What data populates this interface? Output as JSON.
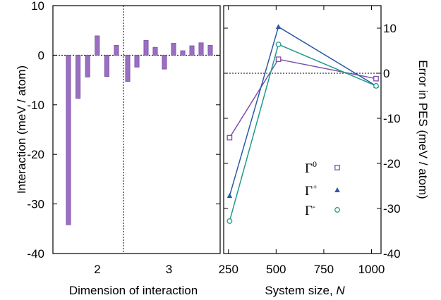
{
  "chart_data": [
    {
      "type": "bar",
      "xlabel": "Dimension of interaction",
      "ylabel": "Interaction (meV / atom)",
      "ylim": [
        -40,
        10
      ],
      "yticks": [
        10,
        0,
        -10,
        -20,
        -30,
        -40
      ],
      "ytick_labels": [
        "10",
        "0",
        "-10",
        "-20",
        "-30",
        "-40"
      ],
      "groups": [
        {
          "label": "2",
          "values": [
            -34.2,
            -8.7,
            -4.4,
            3.9,
            -4.3,
            2.0
          ]
        },
        {
          "label": "3",
          "values": [
            -5.3,
            -2.4,
            3.0,
            1.6,
            -2.8,
            2.4,
            0.9,
            1.9,
            2.5,
            2.0
          ]
        }
      ],
      "bar_color": "#9b6fc0",
      "grid": false,
      "separator": "dotted vertical line between dimension groups"
    },
    {
      "type": "line",
      "xlabel": "System size, ",
      "xlabel_var": "N",
      "ylabel": "Error in PES (meV / atom)",
      "xlim": [
        225,
        1050
      ],
      "ylim": [
        -40,
        15
      ],
      "xticks": [
        250,
        500,
        750,
        1000
      ],
      "yticks": [
        10,
        0,
        -10,
        -20,
        -30,
        -40
      ],
      "ytick_labels": [
        "10",
        "0",
        "-10",
        "-20",
        "-30",
        "-40"
      ],
      "y_axis_side": "right",
      "x": [
        256,
        512,
        1024
      ],
      "series": [
        {
          "name": "0",
          "marker": "open-square",
          "color": "#7b4fae",
          "values": [
            -14.3,
            3.1,
            -1.2
          ]
        },
        {
          "name": "+",
          "marker": "filled-triangle",
          "color": "#2a5aa6",
          "values": [
            -27.2,
            10.3,
            -2.8
          ]
        },
        {
          "name": "-",
          "marker": "open-circle",
          "color": "#1f9b8a",
          "values": [
            -32.8,
            6.4,
            -2.8
          ]
        }
      ],
      "legend_symbol": "Γ",
      "legend_position": "bottom-right",
      "reference_line": 0,
      "grid": false
    }
  ]
}
